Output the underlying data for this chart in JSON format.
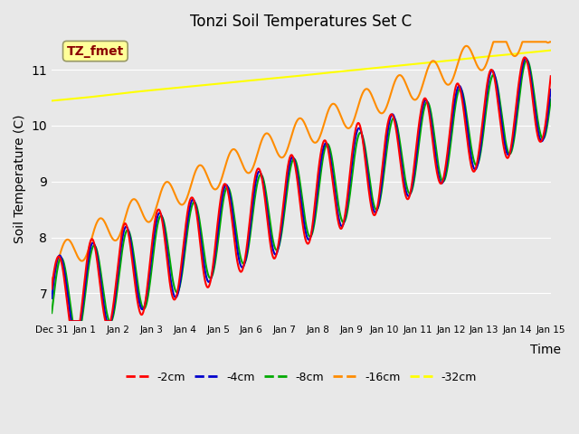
{
  "title": "Tonzi Soil Temperatures Set C",
  "xlabel": "Time",
  "ylabel": "Soil Temperature (C)",
  "ylim": [
    6.5,
    11.6
  ],
  "annotation_text": "TZ_fmet",
  "annotation_color": "#8B0000",
  "annotation_bg": "#FFFF99",
  "bg_color": "#E8E8E8",
  "line_colors": {
    "2cm": "#FF0000",
    "4cm": "#0000CC",
    "8cm": "#00AA00",
    "16cm": "#FF8C00",
    "32cm": "#FFFF00"
  },
  "line_widths": {
    "2cm": 1.5,
    "4cm": 1.5,
    "8cm": 1.5,
    "16cm": 1.5,
    "32cm": 1.5
  },
  "legend_labels": [
    "-2cm",
    "-4cm",
    "-8cm",
    "-16cm",
    "-32cm"
  ],
  "xtick_labels": [
    "Dec 31",
    "Jan 1",
    "Jan 2",
    "Jan 3",
    "Jan 4",
    "Jan 5",
    "Jan 6",
    "Jan 7",
    "Jan 8",
    "Jan 9",
    "Jan 10",
    "Jan 11",
    "Jan 12",
    "Jan 13",
    "Jan 14",
    "Jan 15"
  ],
  "grid_color": "#FFFFFF",
  "grid_alpha": 1.0
}
